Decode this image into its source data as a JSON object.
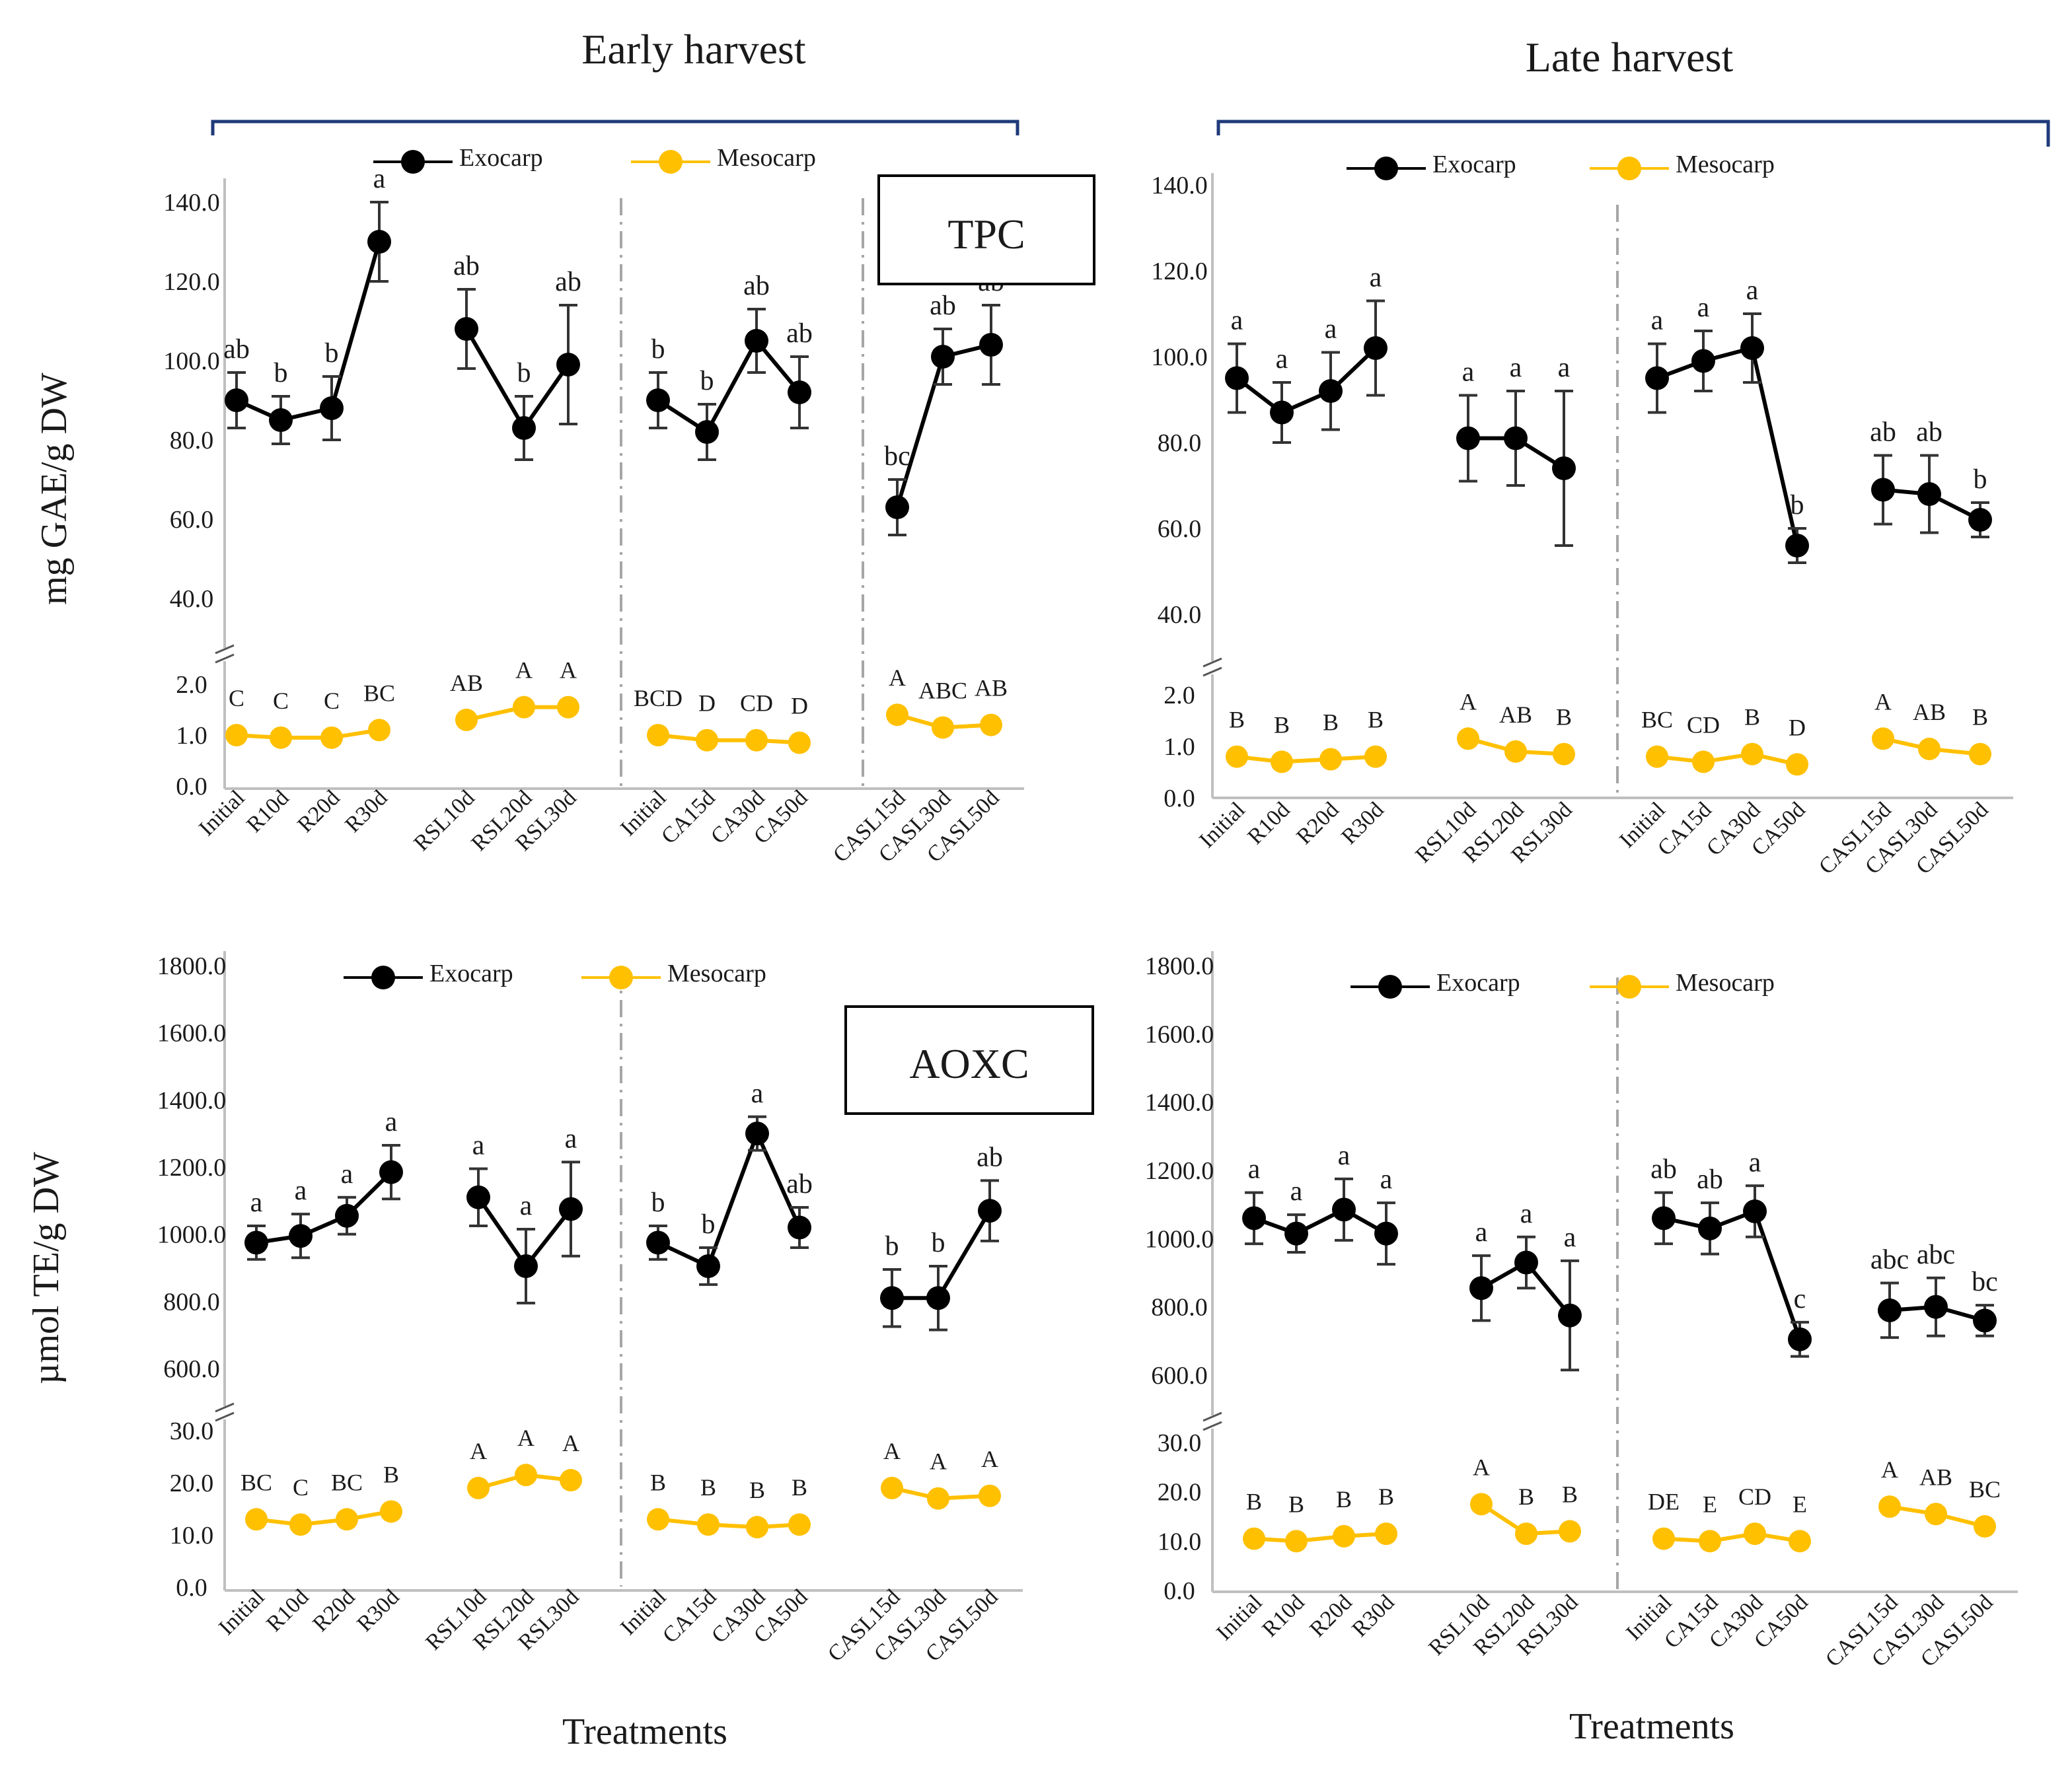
{
  "headers": {
    "early": "Early harvest",
    "late": "Late harvest",
    "tpc_box": "TPC",
    "aoxc_box": "AOXC",
    "xlabel": "Treatments"
  },
  "legend": {
    "exocarp": "Exocarp",
    "mesocarp": "Mesocarp"
  },
  "colors": {
    "exocarp": "#000000",
    "mesocarp": "#FFC000",
    "bracket": "#1F3A7A",
    "axis": "#BFBFBF",
    "divider": "#A6A6A6"
  },
  "chart_data": [
    {
      "id": "tpc-early",
      "type": "line",
      "title": "TPC - Early harvest",
      "ylabel": "mg GAE/g DW",
      "xlabel": "Treatments",
      "categories": [
        "Initial",
        "R10d",
        "R20d",
        "R30d",
        "RSL10d",
        "RSL20d",
        "RSL30d",
        "Initial",
        "CA15d",
        "CA30d",
        "CA50d",
        "CASL15d",
        "CASL30d",
        "CASL50d"
      ],
      "groups": [
        [
          0,
          1,
          2,
          3
        ],
        [
          4,
          5,
          6
        ],
        [
          7,
          8,
          9,
          10
        ],
        [
          11,
          12,
          13
        ]
      ],
      "upper_axis": {
        "range": [
          40,
          140
        ],
        "ticks": [
          "140.0",
          "120.0",
          "100.0",
          "80.0",
          "60.0",
          "40.0"
        ]
      },
      "lower_axis": {
        "range": [
          0,
          2
        ],
        "ticks": [
          "2.0",
          "1.0",
          "0.0"
        ]
      },
      "series": [
        {
          "name": "Exocarp",
          "values": [
            90,
            85,
            88,
            130,
            108,
            83,
            99,
            90,
            82,
            105,
            92,
            63,
            101,
            104
          ],
          "errors": [
            7,
            6,
            8,
            10,
            10,
            8,
            15,
            7,
            7,
            8,
            9,
            7,
            7,
            10
          ],
          "letters": [
            "ab",
            "b",
            "b",
            "a",
            "ab",
            "b",
            "ab",
            "b",
            "b",
            "ab",
            "ab",
            "bc",
            "ab",
            "ab"
          ]
        },
        {
          "name": "Mesocarp",
          "values": [
            1.0,
            0.95,
            0.95,
            1.1,
            1.3,
            1.55,
            1.55,
            1.0,
            0.9,
            0.9,
            0.85,
            1.4,
            1.15,
            1.2
          ],
          "letters": [
            "C",
            "C",
            "C",
            "BC",
            "AB",
            "A",
            "A",
            "BCD",
            "D",
            "CD",
            "D",
            "A",
            "ABC",
            "AB"
          ]
        }
      ]
    },
    {
      "id": "tpc-late",
      "type": "line",
      "title": "TPC - Late harvest",
      "ylabel": "",
      "xlabel": "",
      "categories": [
        "Initial",
        "R10d",
        "R20d",
        "R30d",
        "RSL10d",
        "RSL20d",
        "RSL30d",
        "Initial",
        "CA15d",
        "CA30d",
        "CA50d",
        "CASL15d",
        "CASL30d",
        "CASL50d"
      ],
      "groups": [
        [
          0,
          1,
          2,
          3
        ],
        [
          4,
          5,
          6
        ],
        [
          7,
          8,
          9,
          10
        ],
        [
          11,
          12,
          13
        ]
      ],
      "upper_axis": {
        "range": [
          40,
          140
        ],
        "ticks": [
          "140.0",
          "120.0",
          "100.0",
          "80.0",
          "60.0",
          "40.0"
        ]
      },
      "lower_axis": {
        "range": [
          0,
          2
        ],
        "ticks": [
          "2.0",
          "1.0",
          "0.0"
        ]
      },
      "series": [
        {
          "name": "Exocarp",
          "values": [
            95,
            87,
            92,
            102,
            81,
            81,
            74,
            95,
            99,
            102,
            56,
            69,
            68,
            62
          ],
          "errors": [
            8,
            7,
            9,
            11,
            10,
            11,
            18,
            8,
            7,
            8,
            4,
            8,
            9,
            4
          ],
          "letters": [
            "a",
            "a",
            "a",
            "a",
            "a",
            "a",
            "a",
            "a",
            "a",
            "a",
            "b",
            "ab",
            "ab",
            "b"
          ]
        },
        {
          "name": "Mesocarp",
          "values": [
            0.8,
            0.7,
            0.75,
            0.8,
            1.15,
            0.9,
            0.85,
            0.8,
            0.7,
            0.85,
            0.65,
            1.15,
            0.95,
            0.85
          ],
          "letters": [
            "B",
            "B",
            "B",
            "B",
            "A",
            "AB",
            "B",
            "BC",
            "CD",
            "B",
            "D",
            "A",
            "AB",
            "B"
          ]
        }
      ]
    },
    {
      "id": "aoxc-early",
      "type": "line",
      "title": "AOXC - Early harvest",
      "ylabel": "µmol TE/g DW",
      "xlabel": "Treatments",
      "categories": [
        "Initial",
        "R10d",
        "R20d",
        "R30d",
        "RSL10d",
        "RSL20d",
        "RSL30d",
        "Initial",
        "CA15d",
        "CA30d",
        "CA50d",
        "CASL15d",
        "CASL30d",
        "CASL50d"
      ],
      "groups": [
        [
          0,
          1,
          2,
          3
        ],
        [
          4,
          5,
          6
        ],
        [
          7,
          8,
          9,
          10
        ],
        [
          11,
          12,
          13
        ]
      ],
      "upper_axis": {
        "range": [
          600,
          1800
        ],
        "ticks": [
          "1800.0",
          "1600.0",
          "1400.0",
          "1200.0",
          "1000.0",
          "800.0",
          "600.0"
        ]
      },
      "lower_axis": {
        "range": [
          0,
          30
        ],
        "ticks": [
          "30.0",
          "20.0",
          "10.0",
          "0.0"
        ]
      },
      "series": [
        {
          "name": "Exocarp",
          "values": [
            975,
            995,
            1055,
            1185,
            1110,
            905,
            1075,
            975,
            905,
            1300,
            1020,
            810,
            810,
            1070
          ],
          "errors": [
            50,
            65,
            55,
            80,
            85,
            110,
            140,
            50,
            55,
            50,
            60,
            85,
            95,
            90
          ],
          "letters": [
            "a",
            "a",
            "a",
            "a",
            "a",
            "a",
            "a",
            "b",
            "b",
            "a",
            "ab",
            "b",
            "b",
            "ab"
          ]
        },
        {
          "name": "Mesocarp",
          "values": [
            13,
            12,
            13,
            14.5,
            19,
            21.5,
            20.5,
            13,
            12,
            11.5,
            12,
            19,
            17,
            17.5
          ],
          "letters": [
            "BC",
            "C",
            "BC",
            "B",
            "A",
            "A",
            "A",
            "B",
            "B",
            "B",
            "B",
            "A",
            "A",
            "A"
          ]
        }
      ]
    },
    {
      "id": "aoxc-late",
      "type": "line",
      "title": "AOXC - Late harvest",
      "ylabel": "",
      "xlabel": "Treatments",
      "categories": [
        "Initial",
        "R10d",
        "R20d",
        "R30d",
        "RSL10d",
        "RSL20d",
        "RSL30d",
        "Initial",
        "CA15d",
        "CA30d",
        "CA50d",
        "CASL15d",
        "CASL30d",
        "CASL50d"
      ],
      "groups": [
        [
          0,
          1,
          2,
          3
        ],
        [
          4,
          5,
          6
        ],
        [
          7,
          8,
          9,
          10
        ],
        [
          11,
          12,
          13
        ]
      ],
      "upper_axis": {
        "range": [
          600,
          1800
        ],
        "ticks": [
          "1800.0",
          "1600.0",
          "1400.0",
          "1200.0",
          "1000.0",
          "800.0",
          "600.0"
        ]
      },
      "lower_axis": {
        "range": [
          0,
          30
        ],
        "ticks": [
          "30.0",
          "20.0",
          "10.0",
          "0.0"
        ]
      },
      "series": [
        {
          "name": "Exocarp",
          "values": [
            1060,
            1015,
            1085,
            1015,
            855,
            930,
            775,
            1060,
            1030,
            1080,
            705,
            790,
            800,
            760
          ],
          "errors": [
            75,
            55,
            90,
            90,
            95,
            75,
            160,
            75,
            75,
            75,
            50,
            80,
            85,
            45
          ],
          "letters": [
            "a",
            "a",
            "a",
            "a",
            "a",
            "a",
            "a",
            "ab",
            "ab",
            "a",
            "c",
            "abc",
            "abc",
            "bc"
          ]
        },
        {
          "name": "Mesocarp",
          "values": [
            10.5,
            10,
            11,
            11.5,
            17.5,
            11.5,
            12,
            10.5,
            10,
            11.5,
            10,
            17,
            15.5,
            13
          ],
          "letters": [
            "B",
            "B",
            "B",
            "B",
            "A",
            "B",
            "B",
            "DE",
            "E",
            "CD",
            "E",
            "A",
            "AB",
            "BC"
          ]
        }
      ]
    }
  ]
}
